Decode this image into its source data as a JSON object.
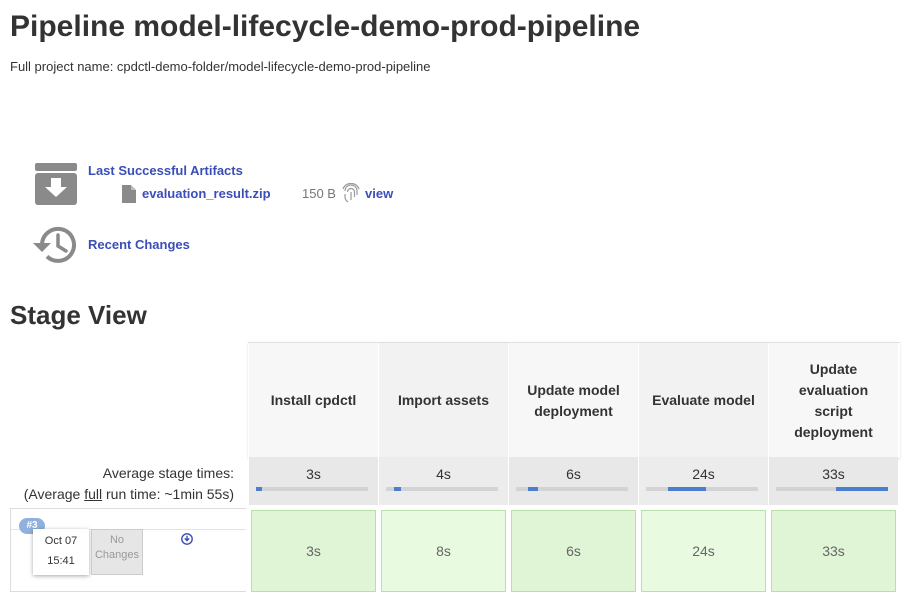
{
  "header": {
    "title": "Pipeline model-lifecycle-demo-prod-pipeline",
    "full_name": "Full project name: cpdctl-demo-folder/model-lifecycle-demo-prod-pipeline"
  },
  "artifacts": {
    "heading": "Last Successful Artifacts",
    "file_name": "evaluation_result.zip",
    "file_size": "150 B",
    "view_label": "view",
    "recent_changes": "Recent Changes",
    "icons": [
      "archive-download-icon",
      "file-icon",
      "fingerprint-icon",
      "history-icon"
    ]
  },
  "stage_view": {
    "title": "Stage View",
    "stages": [
      "Install cpdctl",
      "Import assets",
      "Update model deployment",
      "Evaluate model",
      "Update evaluation script deployment"
    ],
    "avg_label": "Average stage times:",
    "avg_full_prefix": "(Average ",
    "avg_full_link": "full",
    "avg_full_suffix": " run time: ~1min 55s)",
    "avg_times": [
      "3s",
      "4s",
      "6s",
      "24s",
      "33s"
    ],
    "avg_progress": [
      {
        "start": 0.0,
        "fraction": 0.05
      },
      {
        "start": 0.07,
        "fraction": 0.06
      },
      {
        "start": 0.11,
        "fraction": 0.09
      },
      {
        "start": 0.2,
        "fraction": 0.34
      },
      {
        "start": 0.54,
        "fraction": 0.46
      }
    ],
    "build": {
      "number": "#3",
      "date": "Oct 07",
      "time": "15:41",
      "changes": "No Changes"
    },
    "run_times": [
      "3s",
      "8s",
      "6s",
      "24s",
      "33s"
    ],
    "colors": {
      "success": "#dff5d6",
      "bar": "#4a7fd0",
      "link": "#3b4eb8"
    }
  }
}
